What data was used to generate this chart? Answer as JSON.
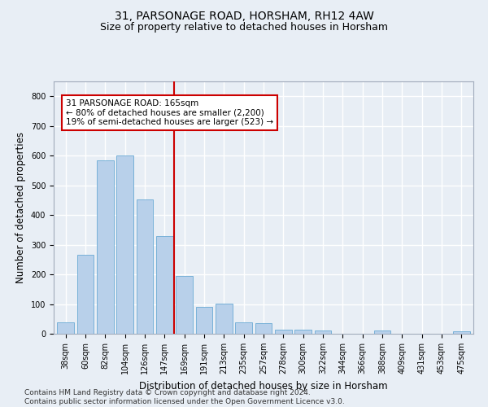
{
  "title1": "31, PARSONAGE ROAD, HORSHAM, RH12 4AW",
  "title2": "Size of property relative to detached houses in Horsham",
  "xlabel": "Distribution of detached houses by size in Horsham",
  "ylabel": "Number of detached properties",
  "categories": [
    "38sqm",
    "60sqm",
    "82sqm",
    "104sqm",
    "126sqm",
    "147sqm",
    "169sqm",
    "191sqm",
    "213sqm",
    "235sqm",
    "257sqm",
    "278sqm",
    "300sqm",
    "322sqm",
    "344sqm",
    "366sqm",
    "388sqm",
    "409sqm",
    "431sqm",
    "453sqm",
    "475sqm"
  ],
  "values": [
    38,
    265,
    585,
    600,
    452,
    330,
    195,
    90,
    102,
    38,
    35,
    14,
    14,
    10,
    0,
    0,
    10,
    0,
    0,
    0,
    8
  ],
  "bar_color": "#b8d0ea",
  "bar_edge_color": "#6aaad4",
  "vline_color": "#cc0000",
  "annotation_text": "31 PARSONAGE ROAD: 165sqm\n← 80% of detached houses are smaller (2,200)\n19% of semi-detached houses are larger (523) →",
  "annotation_box_facecolor": "#ffffff",
  "annotation_box_edgecolor": "#cc0000",
  "ylim": [
    0,
    850
  ],
  "yticks": [
    0,
    100,
    200,
    300,
    400,
    500,
    600,
    700,
    800
  ],
  "footer_text": "Contains HM Land Registry data © Crown copyright and database right 2024.\nContains public sector information licensed under the Open Government Licence v3.0.",
  "bg_color": "#e8eef5",
  "plot_bg_color": "#e8eef5",
  "grid_color": "#ffffff",
  "title1_fontsize": 10,
  "title2_fontsize": 9,
  "xlabel_fontsize": 8.5,
  "ylabel_fontsize": 8.5,
  "tick_fontsize": 7,
  "footer_fontsize": 6.5,
  "annot_fontsize": 7.5
}
